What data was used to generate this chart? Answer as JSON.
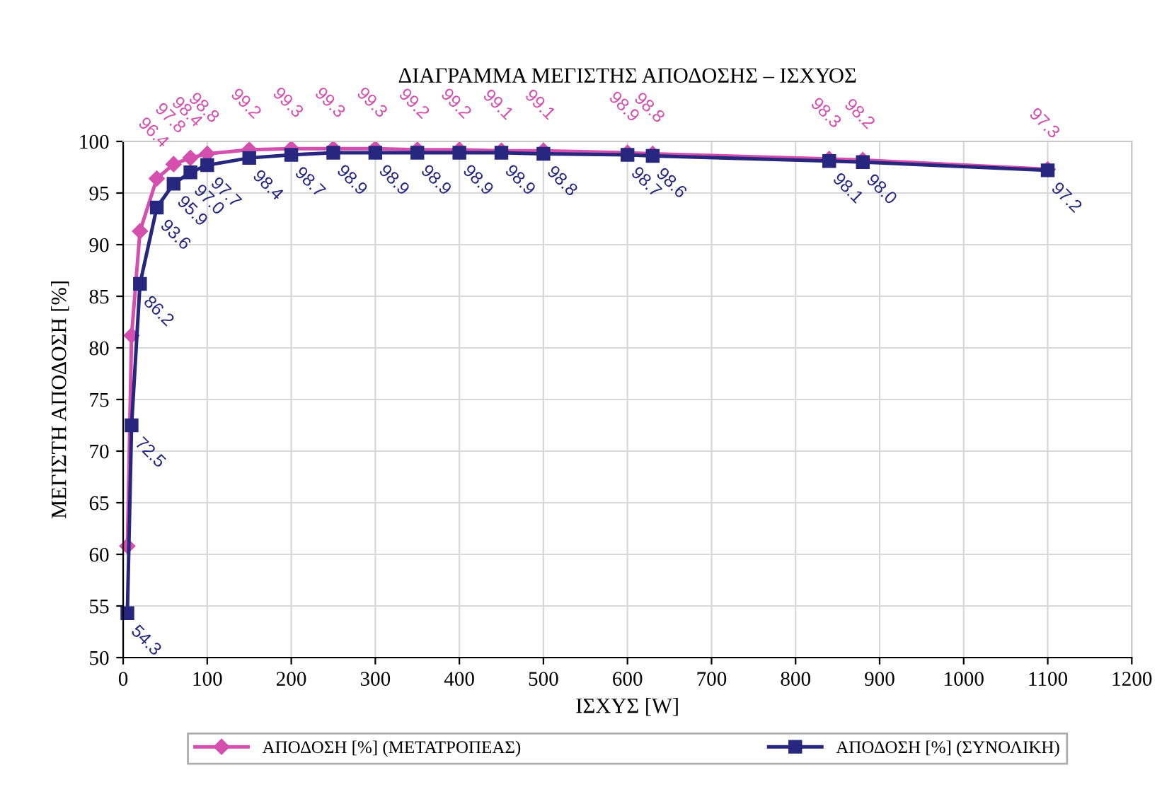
{
  "chart_data": {
    "type": "line",
    "title": "ΔΙΑΓΡΑΜΜΑ ΜΕΓΙΣΤΗΣ ΑΠΟΔΟΣΗΣ – ΙΣΧΥΟΣ",
    "xlabel": "ΙΣΧΥΣ [W]",
    "ylabel": "ΜΕΓΙΣΤΗ ΑΠΟΔΟΣΗ [%]",
    "x": [
      5,
      10,
      20,
      40,
      60,
      80,
      100,
      150,
      200,
      250,
      300,
      350,
      400,
      450,
      500,
      600,
      630,
      840,
      880,
      1100
    ],
    "series": [
      {
        "name": "ΑΠΟΔΟΣΗ [%] (ΜΕΤΑΤΡΟΠΕΑΣ)",
        "color": "#d44fae",
        "marker": "diamond",
        "values": [
          60.8,
          81.2,
          91.3,
          96.4,
          97.8,
          98.4,
          98.8,
          99.2,
          99.3,
          99.3,
          99.3,
          99.2,
          99.2,
          99.1,
          99.1,
          98.9,
          98.8,
          98.3,
          98.2,
          97.3
        ],
        "value_labels": [
          null,
          null,
          null,
          "96.4",
          "97.8",
          "98.4",
          "98.8",
          "99.2",
          "99.3",
          "99.3",
          "99.3",
          "99.2",
          "99.2",
          "99.1",
          "99.1",
          "98.9",
          "98.8",
          "98.3",
          "98.2",
          "97.3"
        ]
      },
      {
        "name": "ΑΠΟΔΟΣΗ [%] (ΣΥΝΟΛΙΚΗ)",
        "color": "#27277f",
        "marker": "square",
        "values": [
          54.3,
          72.5,
          86.2,
          93.6,
          95.9,
          97.0,
          97.7,
          98.4,
          98.7,
          98.9,
          98.9,
          98.9,
          98.9,
          98.9,
          98.8,
          98.7,
          98.6,
          98.1,
          98.0,
          97.2
        ],
        "value_labels": [
          "54.3",
          "72.5",
          "86.2",
          "93.6",
          "95.9",
          "97.0",
          "97.7",
          "98.4",
          "98.7",
          "98.9",
          "98.9",
          "98.9",
          "98.9",
          "98.9",
          "98.8",
          "98.7",
          "98.6",
          "98.1",
          "98.0",
          "97.2"
        ]
      }
    ],
    "xlim": [
      0,
      1200
    ],
    "xticks": [
      0,
      100,
      200,
      300,
      400,
      500,
      600,
      700,
      800,
      900,
      1000,
      1100,
      1200
    ],
    "ylim": [
      50,
      100
    ],
    "yticks": [
      50,
      55,
      60,
      65,
      70,
      75,
      80,
      85,
      90,
      95,
      100
    ],
    "grid": true,
    "legend": "bottom",
    "line_style": "solid"
  }
}
